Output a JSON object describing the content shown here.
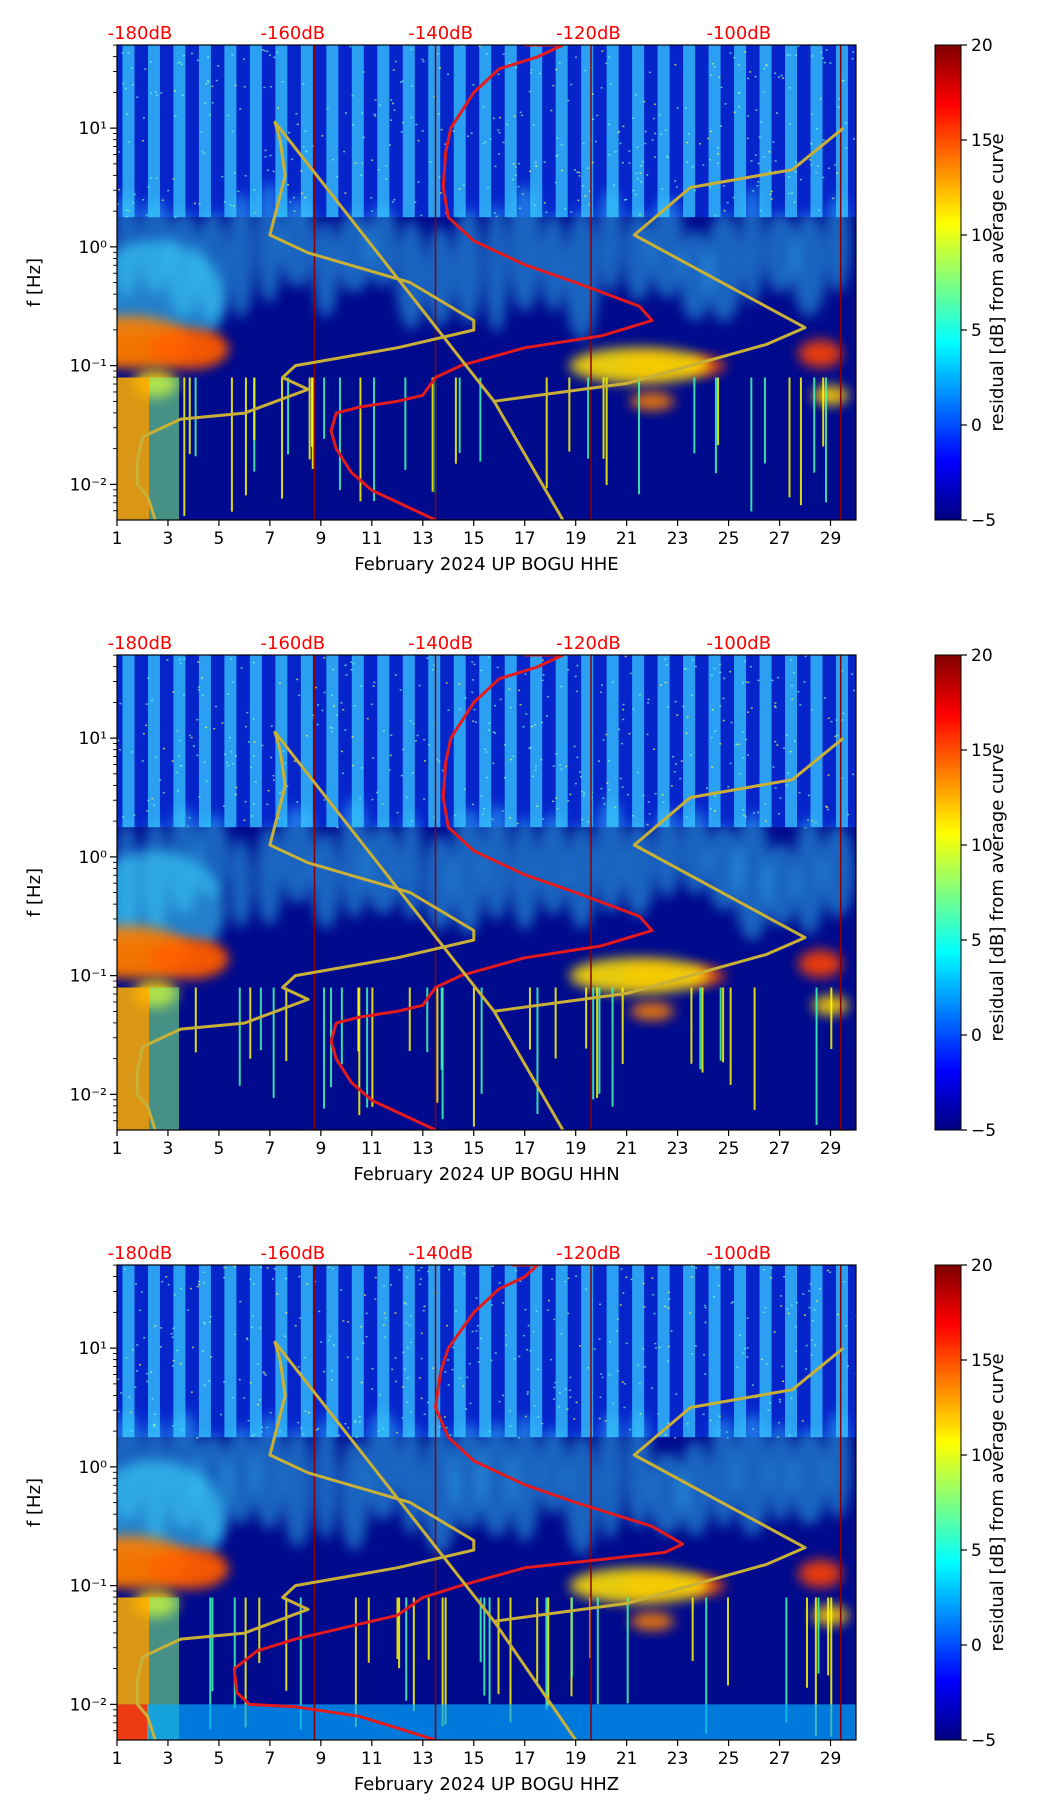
{
  "colors": {
    "jet": [
      "#00007f",
      "#0000ff",
      "#007fff",
      "#00ffff",
      "#7fff7f",
      "#ffff00",
      "#ff7f00",
      "#ff0000",
      "#7f0000"
    ],
    "noise_model_low": "#e41a1c",
    "noise_model_high": "#c9b037",
    "db_label": "#ff0000",
    "background_dark": "#000a8c"
  },
  "chart_data": [
    {
      "type": "heatmap",
      "xlabel": "February 2024 UP BOGU  HHE",
      "ylabel": "f [Hz]",
      "x_ticks": [
        "1",
        "3",
        "5",
        "7",
        "9",
        "11",
        "13",
        "15",
        "17",
        "19",
        "21",
        "23",
        "25",
        "27",
        "29"
      ],
      "y_ticks": [
        "10⁻²",
        "10⁻¹",
        "10⁰",
        "10¹"
      ],
      "xlim": [
        1,
        30
      ],
      "ylim_log10": [
        -2.3,
        1.7
      ],
      "db_labels": [
        "-180dB",
        "-160dB",
        "-140dB",
        "-120dB",
        "-100dB"
      ],
      "colorbar": {
        "label": "residual [dB] from average curve",
        "ticks": [
          "20",
          "15",
          "10",
          "5",
          "0",
          "−5"
        ],
        "range": [
          -5,
          20
        ]
      },
      "noise_curves": [
        {
          "name": "low",
          "points": [
            [
              13.5,
              -2.3
            ],
            [
              12.5,
              -2.2
            ],
            [
              11,
              -2.05
            ],
            [
              10.2,
              -1.9
            ],
            [
              9.6,
              -1.7
            ],
            [
              9.4,
              -1.55
            ],
            [
              9.6,
              -1.4
            ],
            [
              10.5,
              -1.35
            ],
            [
              12,
              -1.3
            ],
            [
              13,
              -1.25
            ],
            [
              13.5,
              -1.1
            ],
            [
              14.5,
              -1.0
            ],
            [
              17,
              -0.85
            ],
            [
              20,
              -0.75
            ],
            [
              22,
              -0.62
            ],
            [
              21.5,
              -0.5
            ],
            [
              19,
              -0.3
            ],
            [
              17,
              -0.15
            ],
            [
              15,
              0.05
            ],
            [
              14,
              0.25
            ],
            [
              13.8,
              0.5
            ],
            [
              13.9,
              0.8
            ],
            [
              14.1,
              1.0
            ],
            [
              15,
              1.3
            ],
            [
              16,
              1.5
            ],
            [
              17.5,
              1.6
            ],
            [
              18.5,
              1.7
            ],
            [
              17,
              1.7
            ]
          ]
        },
        {
          "name": "high",
          "points": [
            [
              2.5,
              -2.3
            ],
            [
              2.2,
              -2.1
            ],
            [
              1.8,
              -2.0
            ],
            [
              1.8,
              -1.8
            ],
            [
              2,
              -1.6
            ],
            [
              3.5,
              -1.45
            ],
            [
              6,
              -1.4
            ],
            [
              8.5,
              -1.2
            ],
            [
              7.5,
              -1.1
            ],
            [
              8,
              -1.0
            ],
            [
              12,
              -0.85
            ],
            [
              15,
              -0.7
            ],
            [
              15,
              -0.62
            ],
            [
              12.5,
              -0.3
            ],
            [
              8.5,
              -0.05
            ],
            [
              7,
              0.1
            ],
            [
              7.6,
              0.6
            ],
            [
              7.4,
              0.9
            ],
            [
              7.2,
              1.05
            ],
            [
              15.8,
              -1.3
            ],
            [
              18.5,
              -2.3
            ],
            [
              15.8,
              -1.3
            ],
            [
              21,
              -1.15
            ],
            [
              26.5,
              -0.82
            ],
            [
              28,
              -0.68
            ],
            [
              21.3,
              0.1
            ],
            [
              23.5,
              0.5
            ],
            [
              27.5,
              0.65
            ],
            [
              29.5,
              1.0
            ]
          ]
        }
      ]
    },
    {
      "type": "heatmap",
      "xlabel": "February 2024 UP BOGU  HHN",
      "ylabel": "f [Hz]",
      "x_ticks": [
        "1",
        "3",
        "5",
        "7",
        "9",
        "11",
        "13",
        "15",
        "17",
        "19",
        "21",
        "23",
        "25",
        "27",
        "29"
      ],
      "y_ticks": [
        "10⁻²",
        "10⁻¹",
        "10⁰",
        "10¹"
      ],
      "xlim": [
        1,
        30
      ],
      "ylim_log10": [
        -2.3,
        1.7
      ],
      "db_labels": [
        "-180dB",
        "-160dB",
        "-140dB",
        "-120dB",
        "-100dB"
      ],
      "colorbar": {
        "label": "residual [dB] from average curve",
        "ticks": [
          "20",
          "15",
          "10",
          "5",
          "0",
          "−5"
        ],
        "range": [
          -5,
          20
        ]
      },
      "noise_curves": [
        {
          "name": "low",
          "points": [
            [
              13.5,
              -2.3
            ],
            [
              12.5,
              -2.2
            ],
            [
              11,
              -2.05
            ],
            [
              10.2,
              -1.9
            ],
            [
              9.6,
              -1.7
            ],
            [
              9.4,
              -1.55
            ],
            [
              9.6,
              -1.4
            ],
            [
              10.5,
              -1.35
            ],
            [
              12,
              -1.3
            ],
            [
              13,
              -1.25
            ],
            [
              13.5,
              -1.1
            ],
            [
              14.5,
              -1.0
            ],
            [
              17,
              -0.85
            ],
            [
              20,
              -0.75
            ],
            [
              22,
              -0.62
            ],
            [
              21.5,
              -0.5
            ],
            [
              19,
              -0.3
            ],
            [
              17,
              -0.15
            ],
            [
              15,
              0.05
            ],
            [
              14,
              0.25
            ],
            [
              13.8,
              0.5
            ],
            [
              13.9,
              0.8
            ],
            [
              14.1,
              1.0
            ],
            [
              15,
              1.3
            ],
            [
              16,
              1.5
            ],
            [
              17.5,
              1.6
            ],
            [
              18.5,
              1.7
            ],
            [
              17,
              1.7
            ]
          ]
        },
        {
          "name": "high",
          "points": [
            [
              2.5,
              -2.3
            ],
            [
              2.2,
              -2.1
            ],
            [
              1.8,
              -2.0
            ],
            [
              1.8,
              -1.8
            ],
            [
              2,
              -1.6
            ],
            [
              3.5,
              -1.45
            ],
            [
              6,
              -1.4
            ],
            [
              8.5,
              -1.2
            ],
            [
              7.5,
              -1.1
            ],
            [
              8,
              -1.0
            ],
            [
              12,
              -0.85
            ],
            [
              15,
              -0.7
            ],
            [
              15,
              -0.62
            ],
            [
              12.5,
              -0.3
            ],
            [
              8.5,
              -0.05
            ],
            [
              7,
              0.1
            ],
            [
              7.6,
              0.6
            ],
            [
              7.4,
              0.9
            ],
            [
              7.2,
              1.05
            ],
            [
              15.8,
              -1.3
            ],
            [
              18.5,
              -2.3
            ],
            [
              15.8,
              -1.3
            ],
            [
              21,
              -1.15
            ],
            [
              26.5,
              -0.82
            ],
            [
              28,
              -0.68
            ],
            [
              21.3,
              0.1
            ],
            [
              23.5,
              0.5
            ],
            [
              27.5,
              0.65
            ],
            [
              29.5,
              1.0
            ]
          ]
        }
      ]
    },
    {
      "type": "heatmap",
      "xlabel": "February 2024 UP BOGU  HHZ",
      "ylabel": "f [Hz]",
      "x_ticks": [
        "1",
        "3",
        "5",
        "7",
        "9",
        "11",
        "13",
        "15",
        "17",
        "19",
        "21",
        "23",
        "25",
        "27",
        "29"
      ],
      "y_ticks": [
        "10⁻²",
        "10⁻¹",
        "10⁰",
        "10¹"
      ],
      "xlim": [
        1,
        30
      ],
      "ylim_log10": [
        -2.3,
        1.7
      ],
      "db_labels": [
        "-180dB",
        "-160dB",
        "-140dB",
        "-120dB",
        "-100dB"
      ],
      "colorbar": {
        "label": "residual [dB] from average curve",
        "ticks": [
          "20",
          "15",
          "10",
          "5",
          "0",
          "−5"
        ],
        "range": [
          -5,
          20
        ]
      },
      "noise_curves": [
        {
          "name": "low",
          "points": [
            [
              13.5,
              -2.3
            ],
            [
              12,
              -2.2
            ],
            [
              10.5,
              -2.1
            ],
            [
              8,
              -2.02
            ],
            [
              6.2,
              -2.0
            ],
            [
              5.7,
              -1.9
            ],
            [
              5.6,
              -1.7
            ],
            [
              6.5,
              -1.55
            ],
            [
              8,
              -1.45
            ],
            [
              10,
              -1.35
            ],
            [
              12,
              -1.25
            ],
            [
              13,
              -1.1
            ],
            [
              14.5,
              -1.0
            ],
            [
              17,
              -0.85
            ],
            [
              20,
              -0.78
            ],
            [
              22.5,
              -0.72
            ],
            [
              23.2,
              -0.65
            ],
            [
              22,
              -0.5
            ],
            [
              19,
              -0.3
            ],
            [
              17,
              -0.15
            ],
            [
              15,
              0.05
            ],
            [
              14,
              0.25
            ],
            [
              13.5,
              0.5
            ],
            [
              13.7,
              0.8
            ],
            [
              14,
              1.0
            ],
            [
              15,
              1.3
            ],
            [
              16,
              1.5
            ],
            [
              17,
              1.6
            ],
            [
              17.5,
              1.7
            ],
            [
              16.5,
              1.7
            ]
          ]
        },
        {
          "name": "high",
          "points": [
            [
              2.5,
              -2.3
            ],
            [
              2.2,
              -2.1
            ],
            [
              1.8,
              -2.0
            ],
            [
              1.8,
              -1.8
            ],
            [
              2,
              -1.6
            ],
            [
              3.5,
              -1.45
            ],
            [
              6,
              -1.4
            ],
            [
              8.5,
              -1.2
            ],
            [
              7.5,
              -1.1
            ],
            [
              8,
              -1.0
            ],
            [
              12,
              -0.85
            ],
            [
              15,
              -0.7
            ],
            [
              15,
              -0.62
            ],
            [
              12.5,
              -0.3
            ],
            [
              8.5,
              -0.05
            ],
            [
              7,
              0.1
            ],
            [
              7.6,
              0.6
            ],
            [
              7.4,
              0.9
            ],
            [
              7.2,
              1.05
            ],
            [
              15.8,
              -1.3
            ],
            [
              19,
              -2.3
            ],
            [
              15.8,
              -1.3
            ],
            [
              21,
              -1.15
            ],
            [
              26.5,
              -0.82
            ],
            [
              28,
              -0.68
            ],
            [
              21.3,
              0.1
            ],
            [
              23.5,
              0.5
            ],
            [
              27.5,
              0.65
            ],
            [
              29.5,
              1.0
            ]
          ]
        }
      ]
    }
  ]
}
